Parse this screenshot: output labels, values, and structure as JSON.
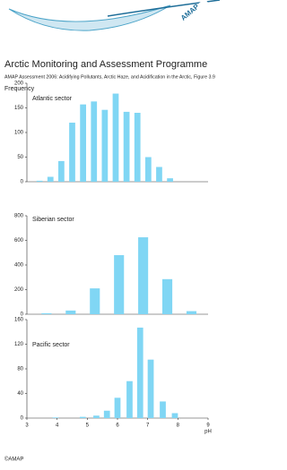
{
  "header": {
    "logo_text": "AMAP",
    "title": "Arctic Monitoring and Assessment Programme",
    "subtitle": "AMAP Assessment 2006: Acidifying Pollutants, Arctic Haze, and Acidification in the Arctic, Figure 3.9"
  },
  "footer": "©AMAP",
  "chart_data": [
    {
      "type": "bar",
      "ylabel": "Frequency",
      "label": "Atlantic sector",
      "color": "#80d6f4",
      "x": [
        3.42,
        3.78,
        4.14,
        4.5,
        4.86,
        5.22,
        5.58,
        5.94,
        6.3,
        6.66,
        7.02,
        7.38,
        7.74
      ],
      "values": [
        2,
        10,
        42,
        120,
        157,
        163,
        146,
        179,
        142,
        140,
        50,
        30,
        7
      ],
      "xlim": [
        3,
        9
      ],
      "ylim": [
        0,
        200
      ],
      "yticks": [
        0,
        50,
        100,
        150,
        200
      ]
    },
    {
      "type": "bar",
      "label": "Siberian sector",
      "color": "#80d6f4",
      "x": [
        3.65,
        4.45,
        5.25,
        6.05,
        6.85,
        7.65,
        8.45
      ],
      "values": [
        8,
        30,
        210,
        480,
        625,
        285,
        25
      ],
      "xlim": [
        3,
        9
      ],
      "ylim": [
        0,
        800
      ],
      "yticks": [
        0,
        200,
        400,
        600,
        800
      ]
    },
    {
      "type": "bar",
      "label": "Pacific sector",
      "color": "#80d6f4",
      "xlabel": "pH",
      "x": [
        3.95,
        4.85,
        5.3,
        5.65,
        6.0,
        6.4,
        6.75,
        7.1,
        7.5,
        7.9
      ],
      "values": [
        1,
        2,
        4,
        12,
        33,
        60,
        147,
        95,
        27,
        8
      ],
      "xlim": [
        3,
        9
      ],
      "xticks": [
        3,
        4,
        5,
        6,
        7,
        8,
        9
      ],
      "ylim": [
        0,
        160
      ],
      "yticks": [
        0,
        40,
        80,
        120,
        160
      ]
    }
  ]
}
